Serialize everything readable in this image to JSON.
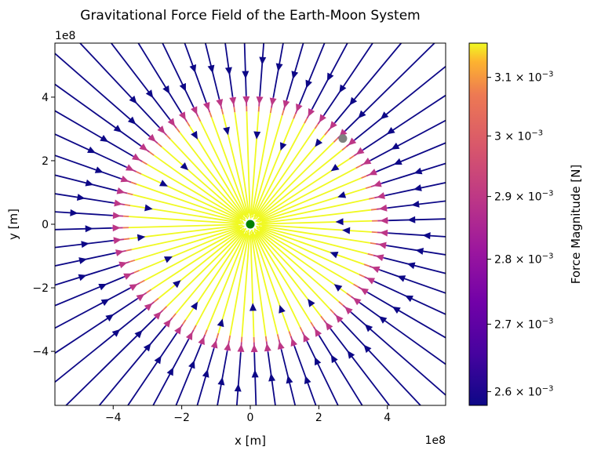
{
  "chart_data": {
    "type": "streamplot",
    "title": "Gravitational Force Field of the Earth-Moon System",
    "xlabel": "x [m]",
    "ylabel": "y [m]",
    "x_offset_label": "1e8",
    "y_offset_label": "1e8",
    "xlim": [
      -5.7,
      5.7
    ],
    "ylim": [
      -5.7,
      5.7
    ],
    "xticks": [
      -4,
      -2,
      0,
      2,
      4
    ],
    "yticks": [
      -4,
      -2,
      0,
      2,
      4
    ],
    "xtick_labels": [
      "−4",
      "−2",
      "0",
      "2",
      "4"
    ],
    "ytick_labels": [
      "−4",
      "−2",
      "0",
      "2",
      "4"
    ],
    "scale_multiplier": 100000000,
    "grid": false,
    "colormap": "plasma",
    "colorbar": {
      "label": "Force Magnitude [N]",
      "scale": "log",
      "range": [
        0.00258,
        0.00316
      ],
      "ticks": [
        0.0026,
        0.0027,
        0.0028,
        0.0029,
        0.003,
        0.0031
      ],
      "tick_mantissas": [
        "2.6",
        "2.7",
        "2.8",
        "2.9",
        "3",
        "3.1"
      ],
      "tick_times": "×",
      "tick_base": "10",
      "tick_exponent": "−3"
    },
    "bodies": [
      {
        "x": 0,
        "y": 0,
        "color": "#008000"
      },
      {
        "x": 2.7,
        "y": 2.7,
        "color": "#808080"
      }
    ],
    "field": {
      "direction": "toward-earth",
      "bright_zone_radius": 3.55,
      "transition_radius": 4.05,
      "streamline_count": 64
    }
  }
}
